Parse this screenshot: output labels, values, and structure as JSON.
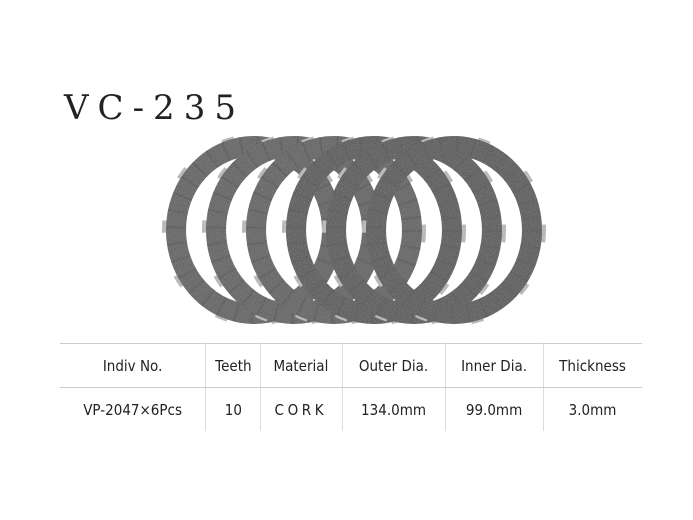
{
  "title": "VC-235",
  "table": {
    "headers": [
      "Indiv No.",
      "Teeth",
      "Material",
      "Outer Dia.",
      "Inner Dia.",
      "Thickness"
    ],
    "rows": [
      [
        "VP-2047×6Pcs",
        "10",
        "CORK",
        "134.0mm",
        "99.0mm",
        "3.0mm"
      ]
    ]
  },
  "image": {
    "subject": "clutch-plates",
    "count": 6,
    "color": "#5a5a5a"
  }
}
